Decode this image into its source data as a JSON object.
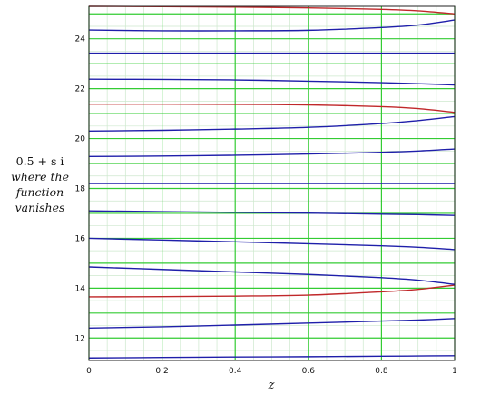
{
  "chart_data": {
    "type": "line",
    "xlabel": "z",
    "ylabel_lines": [
      "0.5 + s i",
      "where the",
      "function",
      "vanishes"
    ],
    "xlim": [
      0,
      1
    ],
    "ylim": [
      11.1,
      25.3
    ],
    "x_ticks": [
      "0",
      "0.2",
      "0.4",
      "0.6",
      "0.8",
      "1"
    ],
    "y_ticks": [
      "12",
      "14",
      "16",
      "18",
      "20",
      "22",
      "24"
    ],
    "grid": true,
    "colors": {
      "major_grid": "#33cc33",
      "minor_grid": "#cde8cd",
      "blue": "#1f1faa",
      "red": "#c0282a"
    },
    "x": [
      0,
      0.2,
      0.4,
      0.6,
      0.8,
      0.9,
      1.0
    ],
    "series": [
      {
        "color": "blue",
        "values": [
          11.2,
          11.22,
          11.24,
          11.25,
          11.27,
          11.28,
          11.29
        ]
      },
      {
        "color": "blue",
        "values": [
          12.4,
          12.45,
          12.52,
          12.6,
          12.68,
          12.72,
          12.78
        ]
      },
      {
        "color": "red",
        "values": [
          13.65,
          13.66,
          13.68,
          13.72,
          13.85,
          13.95,
          14.12
        ]
      },
      {
        "color": "blue",
        "values": [
          14.85,
          14.75,
          14.65,
          14.55,
          14.42,
          14.32,
          14.15
        ]
      },
      {
        "color": "blue",
        "values": [
          16.0,
          15.93,
          15.86,
          15.78,
          15.7,
          15.64,
          15.55
        ]
      },
      {
        "color": "blue",
        "values": [
          17.1,
          17.07,
          17.04,
          17.01,
          16.97,
          16.95,
          16.92
        ]
      },
      {
        "color": "blue",
        "values": [
          18.2,
          18.2,
          18.2,
          18.2,
          18.2,
          18.2,
          18.2
        ]
      },
      {
        "color": "blue",
        "values": [
          19.28,
          19.3,
          19.33,
          19.38,
          19.45,
          19.5,
          19.58
        ]
      },
      {
        "color": "blue",
        "values": [
          20.3,
          20.33,
          20.38,
          20.45,
          20.6,
          20.72,
          20.88
        ]
      },
      {
        "color": "red",
        "values": [
          21.38,
          21.38,
          21.37,
          21.35,
          21.28,
          21.2,
          21.05
        ]
      },
      {
        "color": "blue",
        "values": [
          22.38,
          22.37,
          22.35,
          22.3,
          22.24,
          22.2,
          22.15
        ]
      },
      {
        "color": "blue",
        "values": [
          23.42,
          23.42,
          23.42,
          23.42,
          23.42,
          23.42,
          23.42
        ]
      },
      {
        "color": "blue",
        "values": [
          24.35,
          24.32,
          24.32,
          24.34,
          24.45,
          24.55,
          24.75
        ]
      },
      {
        "color": "red",
        "values": [
          25.3,
          25.29,
          25.27,
          25.24,
          25.18,
          25.12,
          25.0
        ]
      }
    ]
  }
}
